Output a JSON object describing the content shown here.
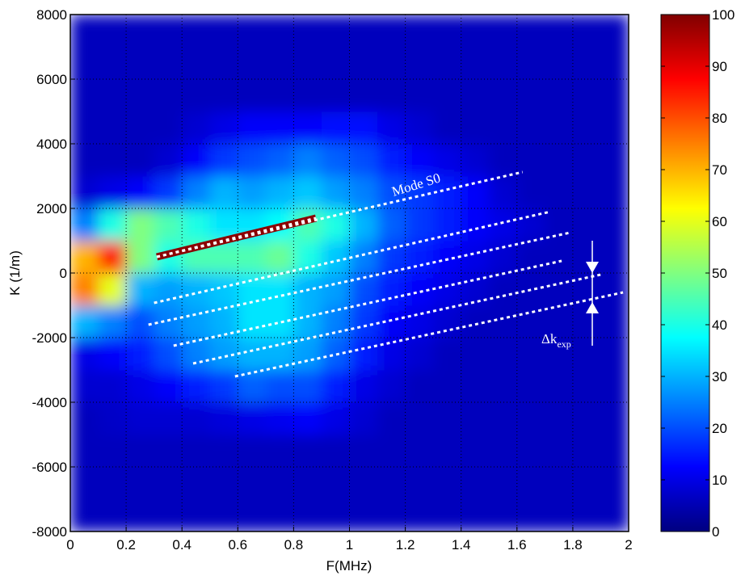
{
  "chart_data": {
    "type": "heatmap",
    "xlabel": "F(MHz)",
    "ylabel": "K (1/m)",
    "xlim": [
      0,
      2
    ],
    "ylim": [
      -8000,
      8000
    ],
    "xticks": [
      0,
      0.2,
      0.4,
      0.6,
      0.8,
      1,
      1.2,
      1.4,
      1.6,
      1.8,
      2
    ],
    "yticks": [
      -8000,
      -6000,
      -4000,
      -2000,
      0,
      2000,
      4000,
      6000,
      8000
    ],
    "grid": true,
    "colormap": "jet",
    "clim": [
      0,
      100
    ],
    "cticks": [
      0,
      10,
      20,
      30,
      40,
      50,
      60,
      70,
      80,
      90,
      100
    ],
    "zx": [
      0,
      0.1,
      0.2,
      0.3,
      0.4,
      0.5,
      0.6,
      0.7,
      0.8,
      0.9,
      1,
      1.1,
      1.2,
      1.3,
      1.4,
      1.5,
      1.6,
      1.7,
      1.8,
      1.9,
      2
    ],
    "zy": [
      -8000,
      -7000,
      -6000,
      -5000,
      -4000,
      -3000,
      -2000,
      -1000,
      0,
      1000,
      2000,
      3000,
      4000,
      5000,
      6000,
      7000,
      8000
    ],
    "z": [
      [
        6,
        6,
        6,
        6,
        6,
        6,
        6,
        6,
        6,
        6,
        6,
        6,
        6,
        6,
        6,
        6,
        6,
        6,
        6,
        6
      ],
      [
        6,
        6,
        6,
        6,
        6,
        6,
        6,
        6,
        6,
        6,
        6,
        6,
        6,
        6,
        6,
        6,
        6,
        6,
        6,
        6
      ],
      [
        6,
        6,
        6,
        6,
        6,
        6,
        6,
        6,
        6,
        6,
        6,
        6,
        6,
        6,
        6,
        6,
        6,
        6,
        6,
        6
      ],
      [
        6,
        7,
        8,
        8,
        8,
        9,
        10,
        11,
        12,
        10,
        8,
        6,
        6,
        6,
        6,
        6,
        6,
        6,
        6,
        6
      ],
      [
        8,
        8,
        10,
        12,
        15,
        18,
        22,
        20,
        20,
        15,
        10,
        8,
        6,
        6,
        6,
        6,
        6,
        6,
        6,
        6
      ],
      [
        10,
        12,
        15,
        20,
        25,
        28,
        30,
        30,
        28,
        22,
        15,
        10,
        8,
        6,
        6,
        6,
        6,
        6,
        6,
        6
      ],
      [
        30,
        25,
        20,
        25,
        28,
        30,
        35,
        35,
        30,
        25,
        18,
        12,
        10,
        8,
        6,
        6,
        6,
        6,
        6,
        6
      ],
      [
        75,
        60,
        30,
        28,
        30,
        32,
        35,
        35,
        30,
        28,
        20,
        15,
        12,
        10,
        8,
        6,
        6,
        6,
        6,
        6
      ],
      [
        70,
        85,
        50,
        40,
        45,
        45,
        45,
        48,
        40,
        32,
        25,
        18,
        15,
        12,
        10,
        8,
        6,
        6,
        6,
        6
      ],
      [
        25,
        40,
        50,
        45,
        40,
        35,
        35,
        38,
        45,
        40,
        30,
        22,
        18,
        15,
        12,
        10,
        8,
        6,
        6,
        6
      ],
      [
        8,
        10,
        12,
        18,
        25,
        30,
        28,
        30,
        32,
        28,
        25,
        20,
        18,
        15,
        12,
        8,
        6,
        6,
        6,
        6
      ],
      [
        6,
        6,
        6,
        8,
        12,
        18,
        20,
        22,
        25,
        22,
        20,
        15,
        12,
        10,
        8,
        6,
        6,
        6,
        6,
        6
      ],
      [
        6,
        6,
        6,
        6,
        8,
        10,
        12,
        12,
        12,
        14,
        14,
        10,
        8,
        6,
        6,
        6,
        6,
        6,
        6,
        6
      ],
      [
        6,
        6,
        6,
        6,
        6,
        6,
        6,
        6,
        6,
        6,
        6,
        6,
        6,
        6,
        6,
        6,
        6,
        6,
        6,
        6
      ],
      [
        6,
        6,
        6,
        6,
        6,
        6,
        6,
        6,
        6,
        6,
        6,
        6,
        6,
        6,
        6,
        6,
        6,
        6,
        6,
        6
      ],
      [
        6,
        6,
        6,
        6,
        6,
        6,
        6,
        6,
        6,
        6,
        6,
        6,
        6,
        6,
        6,
        6,
        6,
        6,
        6,
        6
      ]
    ],
    "lines": [
      {
        "x": [
          0.31,
          0.88
        ],
        "y": [
          500,
          1700
        ],
        "color": "#8b0000",
        "width": 9
      },
      {
        "x": [
          0.31,
          1.62
        ],
        "y": [
          500,
          3125
        ],
        "color": "#ffffff",
        "width": 3
      },
      {
        "x": [
          0.3,
          1.72
        ],
        "y": [
          -925,
          1900
        ],
        "color": "#ffffff",
        "width": 3
      },
      {
        "x": [
          0.28,
          1.79
        ],
        "y": [
          -1600,
          1250
        ],
        "color": "#ffffff",
        "width": 3
      },
      {
        "x": [
          0.37,
          1.76
        ],
        "y": [
          -2250,
          375
        ],
        "color": "#ffffff",
        "width": 3
      },
      {
        "x": [
          0.44,
          1.9
        ],
        "y": [
          -2800,
          -50
        ],
        "color": "#ffffff",
        "width": 3
      },
      {
        "x": [
          0.59,
          1.98
        ],
        "y": [
          -3200,
          -600
        ],
        "color": "#ffffff",
        "width": 3
      }
    ],
    "annotations": {
      "mode": "Mode S0",
      "delta": "Δk",
      "delta_sub": "exp"
    }
  }
}
